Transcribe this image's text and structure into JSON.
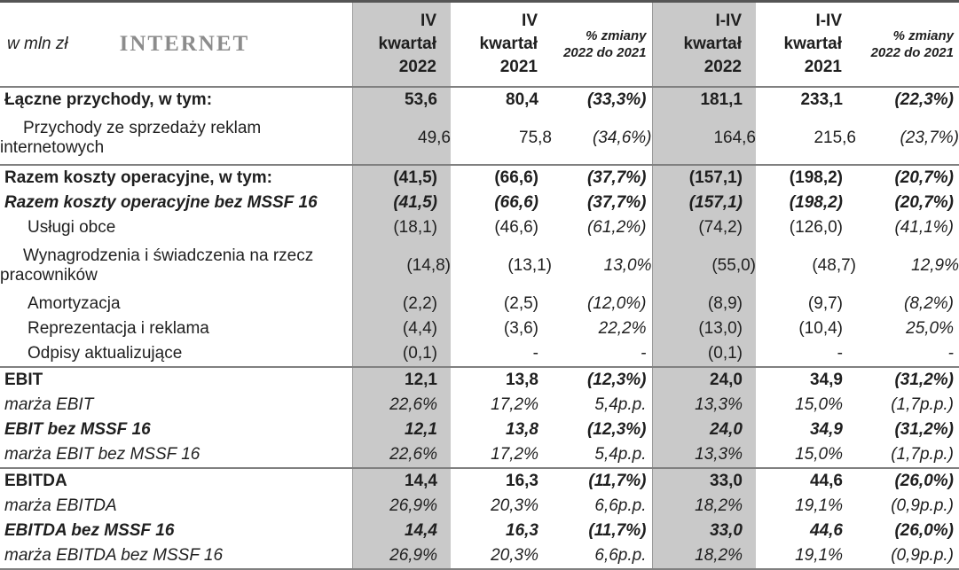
{
  "colors": {
    "highlight_bg": "#c9c9c9",
    "line_color": "#808080",
    "top_border": "#555555",
    "title_color": "#8c8c8c",
    "text_color": "#1f1f1f"
  },
  "meta": {
    "unit_label": "w mln zł",
    "segment_title": "INTERNET"
  },
  "columns": [
    {
      "id": "q4-2022",
      "lines": "IV\nkwartał\n2022",
      "highlight": true,
      "pct": false
    },
    {
      "id": "q4-2021",
      "lines": "IV\nkwartał\n2021",
      "highlight": false,
      "pct": false
    },
    {
      "id": "chg-q4",
      "lines": "% zmiany\n2022 do 2021",
      "highlight": false,
      "pct": true
    },
    {
      "id": "fy-2022",
      "lines": "I-IV\nkwartał\n2022",
      "highlight": true,
      "pct": false
    },
    {
      "id": "fy-2021",
      "lines": "I-IV\nkwartał\n2021",
      "highlight": false,
      "pct": false
    },
    {
      "id": "chg-fy",
      "lines": "% zmiany\n2022 do 2021",
      "highlight": false,
      "pct": true
    }
  ],
  "rows": [
    {
      "label": "Łączne przychody, w tym:",
      "style": "bold",
      "indent": false,
      "section": false,
      "values": [
        "53,6",
        "80,4",
        "(33,3%)",
        "181,1",
        "233,1",
        "(22,3%)"
      ]
    },
    {
      "label": "Przychody ze sprzedaży reklam\ninternetowych",
      "style": "normal",
      "indent": true,
      "section": false,
      "values": [
        "49,6",
        "75,8",
        "(34,6%)",
        "164,6",
        "215,6",
        "(23,7%)"
      ]
    },
    {
      "label": "Razem koszty operacyjne, w tym:",
      "style": "bold",
      "indent": false,
      "section": true,
      "values": [
        "(41,5)",
        "(66,6)",
        "(37,7%)",
        "(157,1)",
        "(198,2)",
        "(20,7%)"
      ]
    },
    {
      "label": "Razem koszty operacyjne bez MSSF 16",
      "style": "bold-italic",
      "indent": false,
      "section": false,
      "values": [
        "(41,5)",
        "(66,6)",
        "(37,7%)",
        "(157,1)",
        "(198,2)",
        "(20,7%)"
      ]
    },
    {
      "label": "Usługi obce",
      "style": "normal",
      "indent": true,
      "section": false,
      "values": [
        "(18,1)",
        "(46,6)",
        "(61,2%)",
        "(74,2)",
        "(126,0)",
        "(41,1%)"
      ]
    },
    {
      "label": "Wynagrodzenia i świadczenia na rzecz\npracowników",
      "style": "normal",
      "indent": true,
      "section": false,
      "values": [
        "(14,8)",
        "(13,1)",
        "13,0%",
        "(55,0)",
        "(48,7)",
        "12,9%"
      ]
    },
    {
      "label": "Amortyzacja",
      "style": "normal",
      "indent": true,
      "section": false,
      "values": [
        "(2,2)",
        "(2,5)",
        "(12,0%)",
        "(8,9)",
        "(9,7)",
        "(8,2%)"
      ]
    },
    {
      "label": "Reprezentacja i reklama",
      "style": "normal",
      "indent": true,
      "section": false,
      "values": [
        "(4,4)",
        "(3,6)",
        "22,2%",
        "(13,0)",
        "(10,4)",
        "25,0%"
      ]
    },
    {
      "label": "Odpisy aktualizujące",
      "style": "normal",
      "indent": true,
      "section": false,
      "values": [
        "(0,1)",
        "-",
        "-",
        "(0,1)",
        "-",
        "-"
      ]
    },
    {
      "label": "EBIT",
      "style": "bold",
      "indent": false,
      "section": true,
      "values": [
        "12,1",
        "13,8",
        "(12,3%)",
        "24,0",
        "34,9",
        "(31,2%)"
      ]
    },
    {
      "label": "marża EBIT",
      "style": "italic",
      "indent": false,
      "section": false,
      "values": [
        "22,6%",
        "17,2%",
        "5,4p.p.",
        "13,3%",
        "15,0%",
        "(1,7p.p.)"
      ]
    },
    {
      "label": "EBIT bez MSSF 16",
      "style": "bold-italic",
      "indent": false,
      "section": false,
      "values": [
        "12,1",
        "13,8",
        "(12,3%)",
        "24,0",
        "34,9",
        "(31,2%)"
      ]
    },
    {
      "label": "marża EBIT bez MSSF 16",
      "style": "italic",
      "indent": false,
      "section": false,
      "values": [
        "22,6%",
        "17,2%",
        "5,4p.p.",
        "13,3%",
        "15,0%",
        "(1,7p.p.)"
      ]
    },
    {
      "label": "EBITDA",
      "style": "bold",
      "indent": false,
      "section": true,
      "values": [
        "14,4",
        "16,3",
        "(11,7%)",
        "33,0",
        "44,6",
        "(26,0%)"
      ]
    },
    {
      "label": "marża EBITDA",
      "style": "italic",
      "indent": false,
      "section": false,
      "values": [
        "26,9%",
        "20,3%",
        "6,6p.p.",
        "18,2%",
        "19,1%",
        "(0,9p.p.)"
      ]
    },
    {
      "label": "EBITDA bez MSSF 16",
      "style": "bold-italic",
      "indent": false,
      "section": false,
      "values": [
        "14,4",
        "16,3",
        "(11,7%)",
        "33,0",
        "44,6",
        "(26,0%)"
      ]
    },
    {
      "label": "marża EBITDA bez MSSF 16",
      "style": "italic",
      "indent": false,
      "section": false,
      "values": [
        "26,9%",
        "20,3%",
        "6,6p.p.",
        "18,2%",
        "19,1%",
        "(0,9p.p.)"
      ]
    }
  ]
}
